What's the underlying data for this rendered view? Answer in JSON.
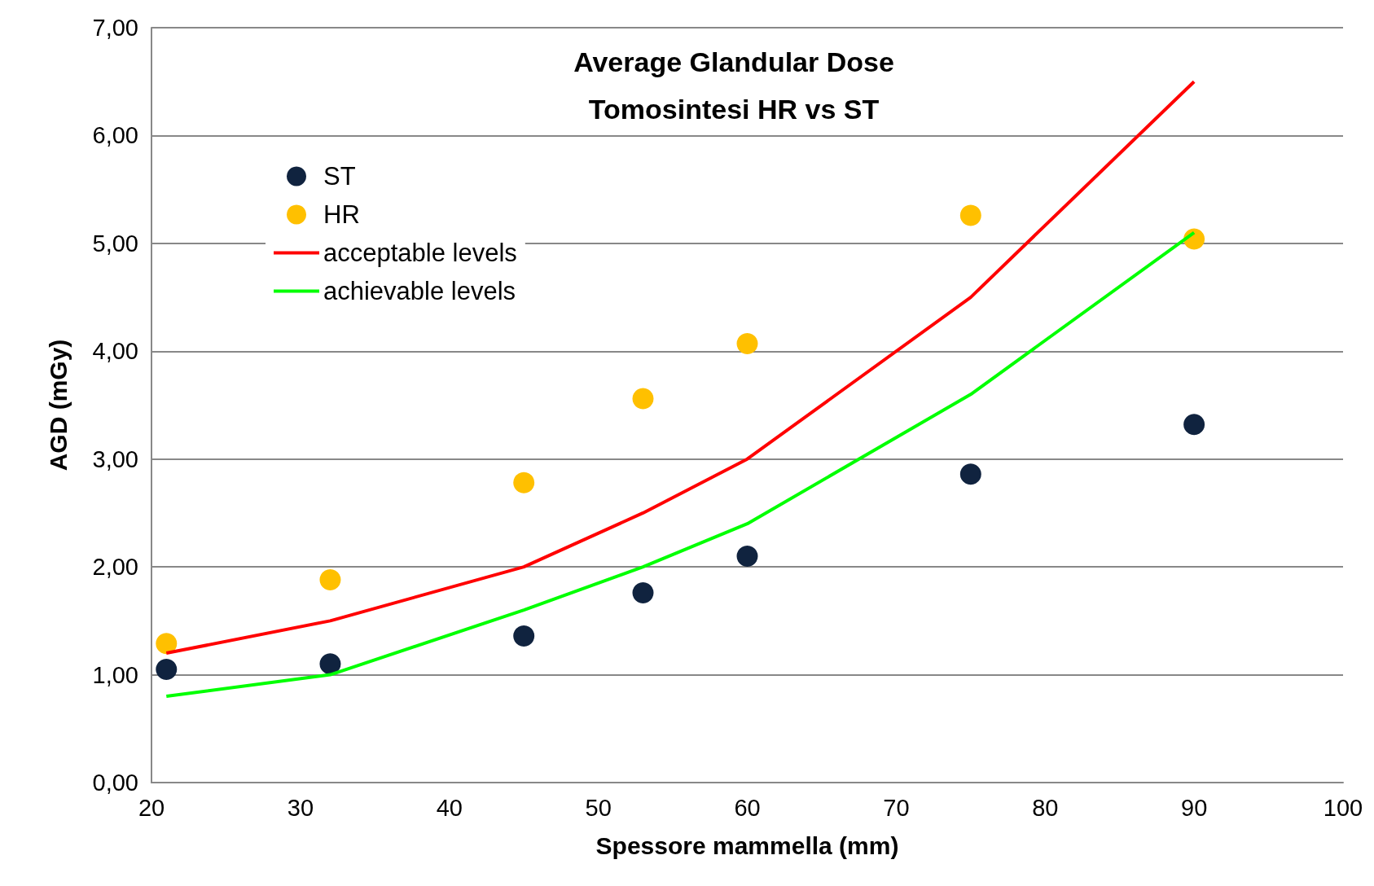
{
  "chart_data": {
    "type": "scatter",
    "title": "Average Glandular Dose\nTomosintesi HR vs ST",
    "xlabel": "Spessore mammella (mm)",
    "ylabel": "AGD (mGy)",
    "x": [
      21,
      32,
      45,
      53,
      60,
      75,
      90
    ],
    "series": [
      {
        "name": "ST",
        "color": "#10233f",
        "values": [
          1.05,
          1.1,
          1.36,
          1.76,
          2.1,
          2.86,
          3.32
        ]
      },
      {
        "name": "HR",
        "color": "#ffc000",
        "values": [
          1.29,
          1.88,
          2.78,
          3.56,
          4.07,
          5.26,
          5.04
        ]
      },
      {
        "name": "acceptable levels",
        "type": "line",
        "marker": "none",
        "color": "#ff0000",
        "values": [
          1.2,
          1.5,
          2.0,
          2.5,
          3.0,
          4.5,
          6.5
        ]
      },
      {
        "name": "achievable levels",
        "type": "line",
        "marker": "none",
        "color": "#00ff00",
        "values": [
          0.8,
          1.0,
          1.6,
          2.0,
          2.4,
          3.6,
          5.1
        ]
      }
    ],
    "xlim": [
      20,
      100
    ],
    "xticks": [
      20,
      30,
      40,
      50,
      60,
      70,
      80,
      90,
      100
    ],
    "ylim": [
      0,
      7
    ],
    "yticks": [
      {
        "value": 0,
        "label": "0,00"
      },
      {
        "value": 1,
        "label": "1,00"
      },
      {
        "value": 2,
        "label": "2,00"
      },
      {
        "value": 3,
        "label": "3,00"
      },
      {
        "value": 4,
        "label": "4,00"
      },
      {
        "value": 5,
        "label": "5,00"
      },
      {
        "value": 6,
        "label": "6,00"
      },
      {
        "value": 7,
        "label": "7,00"
      }
    ],
    "grid": "y",
    "legend": "top left",
    "marker": "circle",
    "line_style": "solid"
  }
}
